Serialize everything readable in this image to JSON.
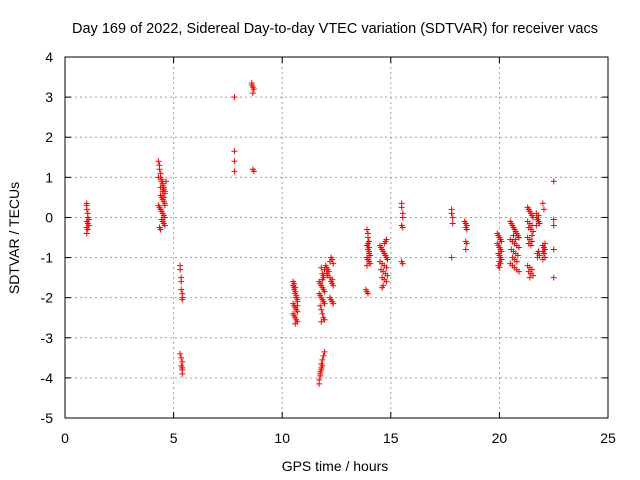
{
  "chart_data": {
    "type": "scatter",
    "title": "Day 169 of 2022, Sidereal Day-to-day VTEC variation (SDTVAR) for receiver vacs",
    "xlabel": "GPS time / hours",
    "ylabel": "SDTVAR / TECUs",
    "xlim": [
      0,
      25
    ],
    "ylim": [
      -5,
      4
    ],
    "xticks": [
      0,
      5,
      10,
      15,
      20,
      25
    ],
    "yticks": [
      -5,
      -4,
      -3,
      -2,
      -1,
      0,
      1,
      2,
      3,
      4
    ],
    "grid": true,
    "marker": "+",
    "color": "#ff0000",
    "series": [
      {
        "name": "SDTVAR",
        "x": [
          1.0,
          1.0,
          1.0,
          1.05,
          1.05,
          1.1,
          1.0,
          1.05,
          1.1,
          1.0,
          1.05,
          1.0,
          4.3,
          4.35,
          4.35,
          4.4,
          4.4,
          4.45,
          4.45,
          4.5,
          4.5,
          4.55,
          4.55,
          4.6,
          4.6,
          4.4,
          4.45,
          4.5,
          4.55,
          4.6,
          4.3,
          4.35,
          4.4,
          4.45,
          4.5,
          4.55,
          4.6,
          4.45,
          4.5,
          4.55,
          4.6,
          4.35,
          4.4,
          4.5,
          4.55,
          4.6,
          4.65,
          4.3,
          4.4,
          5.3,
          5.3,
          5.35,
          5.35,
          5.35,
          5.4,
          5.4,
          5.4,
          5.3,
          5.35,
          5.4,
          5.35,
          5.4,
          5.4,
          5.4,
          7.8,
          7.8,
          7.8,
          7.8,
          8.6,
          8.6,
          8.65,
          8.7,
          8.65,
          8.65,
          8.7,
          10.5,
          10.5,
          10.55,
          10.55,
          10.6,
          10.6,
          10.65,
          10.65,
          10.7,
          10.7,
          10.5,
          10.55,
          10.6,
          10.65,
          10.7,
          10.5,
          10.55,
          10.6,
          10.65,
          10.7,
          10.55,
          10.6,
          10.65,
          10.7,
          10.6,
          11.7,
          11.75,
          11.8,
          11.85,
          11.9,
          11.95,
          11.7,
          11.75,
          11.8,
          11.85,
          11.9,
          11.95,
          11.75,
          11.8,
          11.85,
          11.9,
          11.95,
          11.8,
          11.85,
          11.9,
          11.95,
          11.8,
          11.85,
          11.9,
          11.7,
          11.7,
          11.75,
          11.75,
          11.8,
          11.8,
          11.85,
          11.9,
          11.95,
          11.75,
          11.8,
          11.85,
          12.0,
          12.05,
          12.1,
          12.15,
          12.2,
          12.25,
          12.3,
          12.35,
          12.05,
          12.1,
          12.2,
          12.3,
          12.2,
          12.25,
          12.3,
          12.35,
          12.25,
          12.3,
          12.35,
          13.9,
          13.95,
          14.0,
          13.9,
          13.95,
          14.0,
          13.9,
          13.95,
          14.0,
          14.05,
          13.95,
          14.0,
          13.9,
          13.95,
          14.0,
          14.05,
          13.85,
          13.9,
          13.95,
          14.5,
          14.55,
          14.6,
          14.65,
          14.7,
          14.75,
          14.8,
          14.85,
          14.5,
          14.6,
          14.7,
          14.8,
          14.55,
          14.65,
          14.75,
          14.85,
          14.6,
          14.7,
          14.8,
          14.7,
          14.75,
          14.8,
          14.65,
          14.6,
          15.5,
          15.5,
          15.55,
          15.55,
          15.5,
          15.55,
          15.5,
          15.55,
          17.8,
          17.8,
          17.85,
          17.85,
          17.8,
          18.4,
          18.45,
          18.5,
          18.45,
          18.5,
          18.45,
          18.5,
          18.45,
          19.9,
          19.95,
          20.0,
          20.05,
          20.1,
          19.9,
          19.95,
          20.0,
          20.05,
          20.1,
          19.95,
          20.0,
          20.05,
          20.1,
          20.0,
          20.05,
          19.95,
          20.0,
          20.5,
          20.55,
          20.6,
          20.65,
          20.7,
          20.75,
          20.8,
          20.85,
          20.9,
          20.5,
          20.6,
          20.7,
          20.8,
          20.9,
          20.55,
          20.65,
          20.75,
          20.85,
          20.6,
          20.7,
          20.8,
          20.5,
          20.6,
          20.7,
          20.8,
          20.9,
          20.65,
          20.75,
          21.3,
          21.35,
          21.4,
          21.45,
          21.5,
          21.55,
          21.3,
          21.4,
          21.5,
          21.35,
          21.45,
          21.55,
          21.3,
          21.4,
          21.5,
          21.35,
          21.45,
          21.3,
          21.4,
          21.5,
          21.35,
          21.45,
          21.55,
          21.4,
          21.5,
          21.7,
          21.75,
          21.8,
          21.85,
          21.7,
          21.8,
          21.75,
          21.85,
          21.7,
          21.8,
          21.75,
          22.0,
          22.05,
          22.1,
          22.0,
          22.05,
          22.1,
          22.0,
          22.05,
          22.1,
          22.0,
          22.5,
          22.5,
          22.5,
          22.5,
          22.5
        ],
        "y": [
          0.35,
          0.3,
          0.2,
          0.1,
          0.0,
          -0.05,
          -0.1,
          -0.15,
          -0.2,
          -0.25,
          -0.3,
          -0.4,
          1.4,
          1.3,
          1.2,
          1.1,
          1.0,
          0.95,
          0.9,
          0.85,
          0.8,
          0.75,
          0.7,
          0.65,
          0.6,
          0.55,
          0.5,
          0.45,
          0.4,
          0.35,
          0.3,
          0.25,
          0.2,
          0.15,
          0.1,
          0.05,
          0.0,
          -0.05,
          -0.1,
          -0.15,
          -0.2,
          -0.25,
          0.75,
          0.65,
          0.5,
          0.3,
          0.9,
          1.0,
          -0.3,
          -1.2,
          -1.3,
          -1.5,
          -1.6,
          -1.8,
          -1.9,
          -2.0,
          -2.05,
          -3.4,
          -3.5,
          -3.6,
          -3.7,
          -3.75,
          -3.8,
          -3.9,
          3.0,
          1.65,
          1.4,
          1.15,
          3.35,
          3.3,
          3.25,
          3.2,
          3.1,
          1.2,
          1.15,
          -1.6,
          -1.7,
          -1.75,
          -1.8,
          -1.85,
          -1.9,
          -1.95,
          -2.0,
          -2.05,
          -2.1,
          -2.15,
          -2.2,
          -2.25,
          -2.3,
          -2.35,
          -2.4,
          -2.45,
          -2.5,
          -2.55,
          -2.6,
          -1.65,
          -1.75,
          -2.0,
          -2.2,
          -2.65,
          -1.6,
          -1.65,
          -1.7,
          -1.75,
          -1.8,
          -1.85,
          -1.9,
          -1.95,
          -2.0,
          -2.05,
          -2.1,
          -2.15,
          -2.2,
          -2.3,
          -2.4,
          -2.5,
          -2.55,
          -2.6,
          -1.4,
          -1.5,
          -1.3,
          -1.25,
          -1.55,
          -1.45,
          -4.15,
          -4.05,
          -3.95,
          -3.85,
          -3.75,
          -3.65,
          -3.55,
          -3.45,
          -3.35,
          -3.9,
          -3.8,
          -3.7,
          -1.2,
          -1.25,
          -1.3,
          -1.35,
          -1.1,
          -1.0,
          -1.05,
          -1.15,
          -1.4,
          -1.45,
          -1.5,
          -1.55,
          -2.0,
          -2.05,
          -2.1,
          -2.15,
          -1.6,
          -1.65,
          -1.7,
          -0.3,
          -0.5,
          -0.6,
          -0.7,
          -0.8,
          -0.9,
          -1.0,
          -1.05,
          -1.1,
          -1.15,
          -0.4,
          -0.75,
          -1.2,
          -0.65,
          -0.85,
          -0.95,
          -1.8,
          -1.85,
          -1.9,
          -0.7,
          -0.75,
          -0.8,
          -0.85,
          -0.9,
          -0.95,
          -1.0,
          -1.05,
          -1.1,
          -1.15,
          -1.2,
          -1.25,
          -1.3,
          -1.35,
          -1.4,
          -1.45,
          -1.5,
          -1.55,
          -1.6,
          -0.65,
          -0.6,
          -0.55,
          -1.7,
          -1.75,
          0.35,
          0.25,
          0.1,
          0.0,
          -0.2,
          -0.25,
          -1.1,
          -1.15,
          0.2,
          0.1,
          0.0,
          -0.15,
          -1.0,
          -0.1,
          -0.15,
          -0.2,
          -0.25,
          -0.3,
          -0.6,
          -0.65,
          -0.8,
          -0.4,
          -0.45,
          -0.5,
          -0.55,
          -0.6,
          -0.65,
          -0.7,
          -0.75,
          -0.8,
          -0.85,
          -0.9,
          -0.95,
          -1.0,
          -1.05,
          -1.1,
          -1.15,
          -1.2,
          -1.25,
          -0.1,
          -0.15,
          -0.2,
          -0.25,
          -0.3,
          -0.35,
          -0.4,
          -0.45,
          -0.5,
          -0.55,
          -0.6,
          -0.65,
          -0.7,
          -0.75,
          -0.8,
          -0.85,
          -0.9,
          -0.95,
          -1.0,
          -1.05,
          -1.1,
          -1.15,
          -1.2,
          -1.25,
          -1.3,
          -1.35,
          -0.45,
          -0.55,
          0.25,
          0.2,
          0.15,
          0.1,
          0.05,
          0.0,
          -0.1,
          -0.15,
          -0.2,
          -0.25,
          -0.3,
          -0.35,
          -0.5,
          -0.55,
          -0.6,
          -0.65,
          -0.7,
          -1.2,
          -1.25,
          -1.3,
          -1.35,
          -1.4,
          -1.45,
          -1.5,
          -0.45,
          0.0,
          -0.05,
          -0.1,
          -0.15,
          -0.2,
          -0.85,
          -0.9,
          -0.95,
          0.1,
          0.05,
          -1.0,
          0.35,
          0.2,
          -0.65,
          -0.7,
          -0.75,
          -0.8,
          -0.85,
          -0.9,
          -1.0,
          -1.05,
          0.9,
          -0.05,
          -0.2,
          -0.8,
          -1.5
        ]
      }
    ]
  }
}
